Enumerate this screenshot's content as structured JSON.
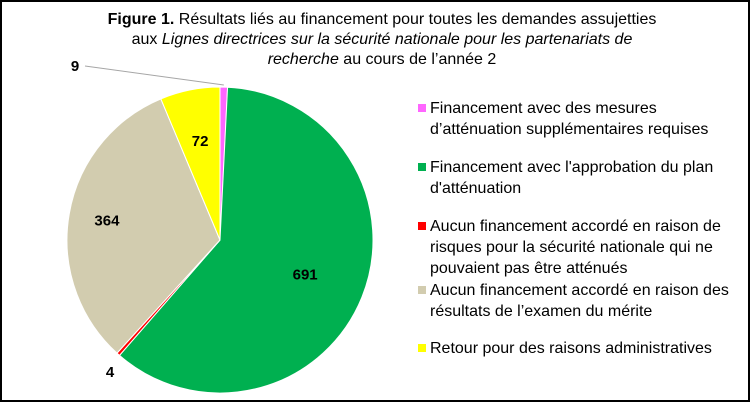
{
  "title": {
    "bold": "Figure 1.",
    "line1": " Résultats liés au financement pour toutes les demandes assujetties",
    "line2_prefix": "aux ",
    "line2_italic": "Lignes directrices sur la sécurité nationale pour les partenariats de",
    "line3_italic": "recherche",
    "line3_suffix": " au cours de l’année 2"
  },
  "chart_data": {
    "type": "pie",
    "slices": [
      {
        "label": "Financement avec des mesures d’atténuation supplémentaires requises",
        "value": 9,
        "color": "#FF66FF"
      },
      {
        "label": "Financement avec l'approbation du plan d'atténuation",
        "value": 691,
        "color": "#00B050"
      },
      {
        "label": "Aucun financement accordé en raison de risques pour la sécurité nationale qui ne pouvaient pas être atténués",
        "value": 4,
        "color": "#FF0000"
      },
      {
        "label": "Aucun financement accordé en raison des résultats de l’examen du mérite",
        "value": 364,
        "color": "#D2CCAF"
      },
      {
        "label": "Retour pour des raisons administratives",
        "value": 72,
        "color": "#FFFF00"
      }
    ],
    "start_angle_deg": 0,
    "direction": "clockwise",
    "legend_position": "right"
  },
  "legend": {
    "items": [
      "Financement avec des mesures d’atténuation supplémentaires requises",
      "Financement avec l'approbation du plan d'atténuation",
      "Aucun financement accordé en raison de risques pour la sécurité nationale qui ne pouvaient pas être atténués",
      "Aucun financement accordé en raison des résultats de l’examen du mérite",
      "Retour pour des raisons administratives"
    ]
  }
}
